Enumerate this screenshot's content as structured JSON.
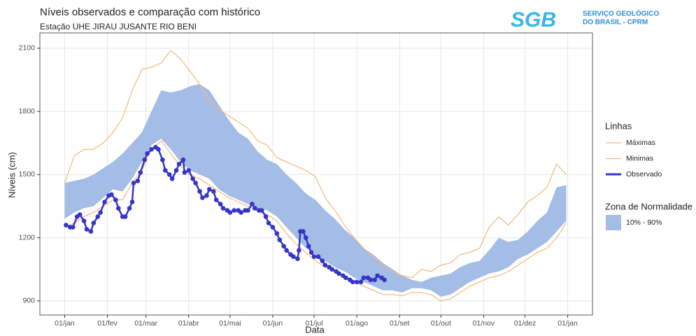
{
  "logo": {
    "mark": "SGB",
    "line1": "SERVIÇO GEOLÓGICO",
    "line2": "DO BRASIL - CPRM"
  },
  "chart_data": {
    "type": "line",
    "title": "Níveis observados e comparação com histórico",
    "subtitle": "Estação UHE JIRAU JUSANTE RIO BENI",
    "x_label": "Data",
    "y_label": "Níveis (cm)",
    "legend_titles": [
      "Linhas",
      "Zona de Normalidade"
    ],
    "xlim": [
      -18,
      383
    ],
    "ylim": [
      833,
      2173
    ],
    "xticks": [
      {
        "value": 0,
        "label": "01/jan"
      },
      {
        "value": 31,
        "label": "01/fev"
      },
      {
        "value": 59,
        "label": "01/mar"
      },
      {
        "value": 90,
        "label": "01/abr"
      },
      {
        "value": 120,
        "label": "01/mai"
      },
      {
        "value": 151,
        "label": "01/jun"
      },
      {
        "value": 181,
        "label": "01/jul"
      },
      {
        "value": 212,
        "label": "01/ago"
      },
      {
        "value": 243,
        "label": "01/set"
      },
      {
        "value": 273,
        "label": "01/out"
      },
      {
        "value": 304,
        "label": "01/nov"
      },
      {
        "value": 334,
        "label": "01/dez"
      },
      {
        "value": 365,
        "label": "01/jan"
      }
    ],
    "yticks": [
      900,
      1200,
      1500,
      1800,
      2100
    ],
    "grid": true,
    "x": [
      0,
      7,
      14,
      21,
      28,
      35,
      42,
      49,
      56,
      63,
      70,
      77,
      84,
      91,
      98,
      105,
      112,
      119,
      126,
      133,
      140,
      147,
      154,
      161,
      168,
      175,
      182,
      189,
      196,
      203,
      210,
      217,
      224,
      231,
      238,
      245,
      252,
      259,
      266,
      273,
      280,
      287,
      294,
      301,
      308,
      315,
      322,
      329,
      336,
      343,
      350,
      357,
      364
    ],
    "band": {
      "name": "10% - 90%",
      "color": "#a3bde6",
      "high": [
        1460,
        1470,
        1480,
        1500,
        1530,
        1560,
        1600,
        1650,
        1700,
        1800,
        1900,
        1890,
        1900,
        1920,
        1930,
        1900,
        1830,
        1760,
        1700,
        1670,
        1610,
        1570,
        1550,
        1500,
        1460,
        1410,
        1380,
        1330,
        1290,
        1240,
        1200,
        1150,
        1120,
        1080,
        1050,
        1020,
        1000,
        990,
        1010,
        1020,
        1030,
        1060,
        1080,
        1090,
        1140,
        1200,
        1180,
        1190,
        1230,
        1280,
        1320,
        1440,
        1450
      ],
      "low": [
        1290,
        1320,
        1340,
        1350,
        1390,
        1430,
        1420,
        1480,
        1560,
        1640,
        1670,
        1620,
        1560,
        1520,
        1500,
        1480,
        1430,
        1400,
        1380,
        1360,
        1340,
        1330,
        1300,
        1250,
        1200,
        1150,
        1120,
        1090,
        1060,
        1040,
        1010,
        990,
        970,
        950,
        950,
        940,
        960,
        960,
        950,
        920,
        930,
        960,
        990,
        1010,
        1030,
        1040,
        1060,
        1100,
        1120,
        1150,
        1180,
        1230,
        1280
      ]
    },
    "series": [
      {
        "name": "Máximas",
        "color": "#f6b77a",
        "values": [
          1460,
          1590,
          1620,
          1620,
          1650,
          1700,
          1770,
          1900,
          2000,
          2010,
          2030,
          2090,
          2050,
          1990,
          1930,
          1850,
          1810,
          1780,
          1750,
          1720,
          1660,
          1640,
          1580,
          1560,
          1540,
          1520,
          1490,
          1390,
          1330,
          1260,
          1200,
          1150,
          1110,
          1070,
          1040,
          1020,
          1010,
          1050,
          1040,
          1070,
          1080,
          1120,
          1130,
          1150,
          1250,
          1300,
          1260,
          1310,
          1370,
          1400,
          1440,
          1550,
          1500
        ]
      },
      {
        "name": "Minimas",
        "color": "#f6b77a",
        "values": [
          1250,
          1270,
          1300,
          1320,
          1350,
          1380,
          1380,
          1460,
          1520,
          1620,
          1660,
          1600,
          1540,
          1500,
          1480,
          1450,
          1420,
          1390,
          1370,
          1350,
          1330,
          1310,
          1280,
          1220,
          1170,
          1130,
          1090,
          1060,
          1040,
          1020,
          990,
          970,
          950,
          930,
          930,
          925,
          940,
          940,
          930,
          900,
          910,
          940,
          970,
          990,
          1010,
          1020,
          1040,
          1070,
          1100,
          1130,
          1150,
          1200,
          1270
        ]
      },
      {
        "name": "Observado",
        "color": "#3535c8",
        "x": [
          1,
          4,
          6,
          9,
          11,
          14,
          16,
          19,
          21,
          24,
          26,
          29,
          32,
          34,
          37,
          39,
          42,
          44,
          47,
          49,
          50,
          53,
          55,
          58,
          60,
          63,
          66,
          68,
          71,
          73,
          76,
          78,
          81,
          83,
          86,
          87,
          90,
          93,
          95,
          98,
          100,
          103,
          105,
          108,
          110,
          113,
          115,
          118,
          120,
          123,
          126,
          128,
          131,
          133,
          136,
          138,
          141,
          143,
          146,
          148,
          151,
          154,
          156,
          159,
          161,
          164,
          166,
          169,
          170,
          171,
          173,
          175,
          177,
          179,
          181,
          184,
          187,
          189,
          192,
          194,
          197,
          199,
          202,
          204,
          207,
          209,
          212,
          215,
          217,
          220,
          222,
          225,
          227,
          230,
          232
        ],
        "values": [
          1260,
          1250,
          1250,
          1300,
          1310,
          1280,
          1240,
          1230,
          1270,
          1300,
          1320,
          1370,
          1400,
          1405,
          1380,
          1340,
          1300,
          1300,
          1340,
          1370,
          1460,
          1470,
          1510,
          1570,
          1600,
          1620,
          1630,
          1620,
          1570,
          1520,
          1500,
          1480,
          1520,
          1550,
          1570,
          1510,
          1520,
          1480,
          1460,
          1420,
          1390,
          1400,
          1430,
          1420,
          1380,
          1360,
          1340,
          1330,
          1320,
          1330,
          1330,
          1320,
          1330,
          1330,
          1360,
          1340,
          1330,
          1330,
          1300,
          1270,
          1250,
          1220,
          1190,
          1160,
          1140,
          1120,
          1110,
          1100,
          1140,
          1230,
          1230,
          1200,
          1160,
          1130,
          1110,
          1110,
          1090,
          1070,
          1060,
          1050,
          1040,
          1030,
          1020,
          1010,
          1000,
          990,
          990,
          990,
          1010,
          1010,
          1000,
          1000,
          1020,
          1010,
          1000
        ]
      }
    ]
  }
}
